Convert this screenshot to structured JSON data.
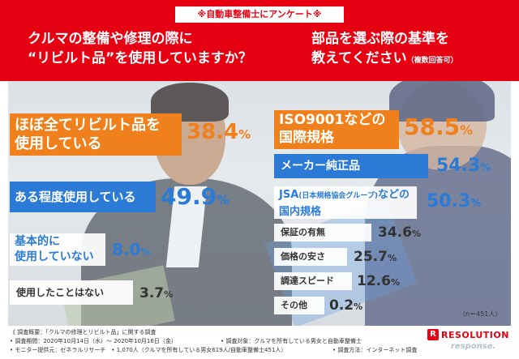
{
  "header": {
    "survey_tag": "※自動車整備士にアンケート※",
    "question_left_line1": "クルマの整備や修理の際に",
    "question_left_line2": "“リビルト品”を使用していますか？",
    "question_right_line1": "部品を選ぶ際の基準を",
    "question_right_line2": "教えてください",
    "question_right_note": "（複数回答可）"
  },
  "left_results": [
    {
      "label_line1": "ほぼ全てリビルト品を",
      "label_line2": "使用している",
      "value": "38.4",
      "unit": "%"
    },
    {
      "label_line1": "ある程度使用している",
      "label_line2": "",
      "value": "49.9",
      "unit": "%"
    },
    {
      "label_line1": "基本的に",
      "label_line2": "使用していない",
      "value": "8.0",
      "unit": "%"
    },
    {
      "label_line1": "使用したことはない",
      "label_line2": "",
      "value": "3.7",
      "unit": "%"
    }
  ],
  "right_results": [
    {
      "label_line1": "ISO9001などの",
      "label_line2": "国際規格",
      "value": "58.5",
      "unit": "%"
    },
    {
      "label_line1": "メーカー純正品",
      "label_line2": "",
      "value": "54.3",
      "unit": "%"
    },
    {
      "label_line1": "JSA",
      "label_small": "(日本規格協会グループ)",
      "label_rest": "などの",
      "label_line2": "国内規格",
      "value": "50.3",
      "unit": "%"
    },
    {
      "label_line1": "保証の有無",
      "label_line2": "",
      "value": "34.6",
      "unit": "%"
    },
    {
      "label_line1": "価格の安さ",
      "label_line2": "",
      "value": "25.7",
      "unit": "%"
    },
    {
      "label_line1": "調達スピード",
      "label_line2": "",
      "value": "12.6",
      "unit": "%"
    },
    {
      "label_line1": "その他",
      "label_line2": "",
      "value": "0.2",
      "unit": "%"
    }
  ],
  "sample_size": "（n＝451人）",
  "footer": {
    "line1": "《 調査概要：「クルマの修理とリビルト品」に関する調査",
    "line2a": "• 調査期間：2020年10月14日（水）～ 2020年10月16日（金）",
    "line2b": "• 調査対象：クルマを所有している男女と自動車整備士",
    "line3a": "• モニター提供元：ゼネラルリサーチ　• 1,070人（クルマを所有している男女619人/自動車整備士451人）",
    "line3b": "• 調査方法：インターネット調査"
  },
  "logo_text": "RESOLUTION",
  "watermark": "response.",
  "colors": {
    "brand_red": "#e50012",
    "orange": "#f0801c",
    "blue": "#2b7bd6"
  }
}
